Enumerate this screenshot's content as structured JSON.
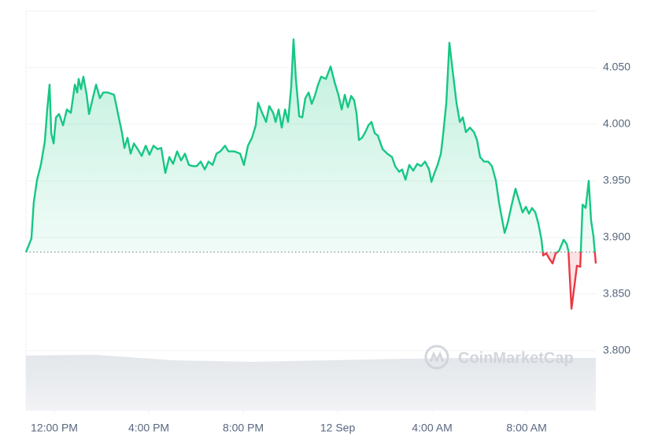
{
  "chart_data": {
    "type": "line",
    "watermark": "CoinMarketCap",
    "reference_price": 3.887,
    "xlim": [
      10.8,
      34.93
    ],
    "xticks": [
      {
        "value": 12,
        "label": "12:00 PM"
      },
      {
        "value": 16,
        "label": "4:00 PM"
      },
      {
        "value": 20,
        "label": "8:00 PM"
      },
      {
        "value": 24,
        "label": "12 Sep"
      },
      {
        "value": 28,
        "label": "4:00 AM"
      },
      {
        "value": 32,
        "label": "8:00 AM"
      }
    ],
    "ylim": [
      3.747,
      4.1
    ],
    "yticks": [
      {
        "value": 3.8,
        "label": "3.800"
      },
      {
        "value": 3.85,
        "label": "3.850"
      },
      {
        "value": 3.9,
        "label": "3.900"
      },
      {
        "value": 3.95,
        "label": "3.950"
      },
      {
        "value": 4.0,
        "label": "4.000"
      },
      {
        "value": 4.05,
        "label": "4.050"
      }
    ],
    "grid": true,
    "up_color": "#16c784",
    "down_color": "#ea3943",
    "x": [
      10.8,
      11.03,
      11.13,
      11.27,
      11.43,
      11.6,
      11.7,
      11.8,
      11.87,
      11.97,
      12.07,
      12.2,
      12.37,
      12.53,
      12.7,
      12.87,
      12.97,
      13.03,
      13.13,
      13.23,
      13.37,
      13.47,
      13.63,
      13.77,
      13.93,
      14.07,
      14.27,
      14.53,
      14.7,
      14.87,
      14.97,
      15.1,
      15.23,
      15.37,
      15.53,
      15.7,
      15.87,
      16.03,
      16.2,
      16.37,
      16.53,
      16.7,
      16.87,
      17.03,
      17.2,
      17.37,
      17.53,
      17.7,
      17.87,
      18.03,
      18.2,
      18.37,
      18.53,
      18.7,
      18.87,
      19.03,
      19.23,
      19.37,
      19.63,
      19.87,
      20.03,
      20.2,
      20.37,
      20.53,
      20.63,
      20.8,
      20.97,
      21.1,
      21.27,
      21.37,
      21.5,
      21.63,
      21.77,
      21.9,
      22.03,
      22.13,
      22.23,
      22.37,
      22.5,
      22.63,
      22.77,
      22.9,
      23.03,
      23.17,
      23.3,
      23.5,
      23.7,
      23.87,
      24.03,
      24.17,
      24.3,
      24.43,
      24.57,
      24.7,
      24.8,
      24.9,
      25.03,
      25.17,
      25.3,
      25.43,
      25.57,
      25.7,
      25.9,
      26.1,
      26.3,
      26.43,
      26.6,
      26.73,
      26.87,
      27.03,
      27.2,
      27.37,
      27.53,
      27.7,
      27.87,
      27.97,
      28.1,
      28.23,
      28.37,
      28.47,
      28.6,
      28.73,
      28.87,
      29.03,
      29.17,
      29.3,
      29.43,
      29.6,
      29.77,
      29.9,
      30.03,
      30.2,
      30.37,
      30.53,
      30.7,
      30.83,
      30.97,
      31.07,
      31.2,
      31.37,
      31.53,
      31.7,
      31.83,
      31.97,
      32.1,
      32.23,
      32.37,
      32.5,
      32.63,
      32.7,
      32.83,
      32.97,
      33.1,
      33.23,
      33.37,
      33.47,
      33.57,
      33.7,
      33.77,
      33.9,
      34.03,
      34.13,
      34.27,
      34.37,
      34.5,
      34.63,
      34.73,
      34.83,
      34.93
    ],
    "values": [
      3.887,
      3.899,
      3.931,
      3.951,
      3.964,
      3.985,
      4.013,
      4.035,
      3.992,
      3.983,
      4.006,
      4.009,
      3.999,
      4.013,
      4.01,
      4.035,
      4.028,
      4.04,
      4.031,
      4.042,
      4.026,
      4.009,
      4.023,
      4.035,
      4.023,
      4.028,
      4.028,
      4.026,
      4.009,
      3.992,
      3.979,
      3.988,
      3.974,
      3.983,
      3.978,
      3.972,
      3.981,
      3.973,
      3.981,
      3.978,
      3.979,
      3.957,
      3.971,
      3.965,
      3.976,
      3.968,
      3.974,
      3.964,
      3.963,
      3.963,
      3.967,
      3.96,
      3.967,
      3.964,
      3.974,
      3.976,
      3.981,
      3.976,
      3.976,
      3.974,
      3.964,
      3.981,
      3.988,
      3.999,
      4.019,
      4.01,
      4.002,
      4.016,
      4.01,
      4.002,
      4.013,
      3.997,
      4.013,
      4.002,
      4.033,
      4.075,
      4.04,
      4.007,
      4.006,
      4.023,
      4.028,
      4.018,
      4.025,
      4.035,
      4.042,
      4.04,
      4.051,
      4.037,
      4.026,
      4.013,
      4.026,
      4.015,
      4.025,
      4.021,
      4.009,
      3.986,
      3.988,
      3.993,
      3.999,
      4.002,
      3.992,
      3.99,
      3.978,
      3.974,
      3.971,
      3.963,
      3.958,
      3.96,
      3.951,
      3.964,
      3.959,
      3.965,
      3.963,
      3.967,
      3.96,
      3.949,
      3.957,
      3.964,
      3.974,
      3.992,
      4.019,
      4.072,
      4.047,
      4.019,
      4.002,
      4.006,
      3.993,
      3.997,
      3.993,
      3.986,
      3.971,
      3.967,
      3.967,
      3.963,
      3.95,
      3.931,
      3.915,
      3.904,
      3.913,
      3.929,
      3.943,
      3.931,
      3.922,
      3.927,
      3.921,
      3.926,
      3.922,
      3.912,
      3.898,
      3.884,
      3.886,
      3.881,
      3.877,
      3.886,
      3.888,
      3.893,
      3.898,
      3.894,
      3.888,
      3.837,
      3.858,
      3.875,
      3.874,
      3.929,
      3.926,
      3.95,
      3.915,
      3.901,
      3.877
    ]
  }
}
